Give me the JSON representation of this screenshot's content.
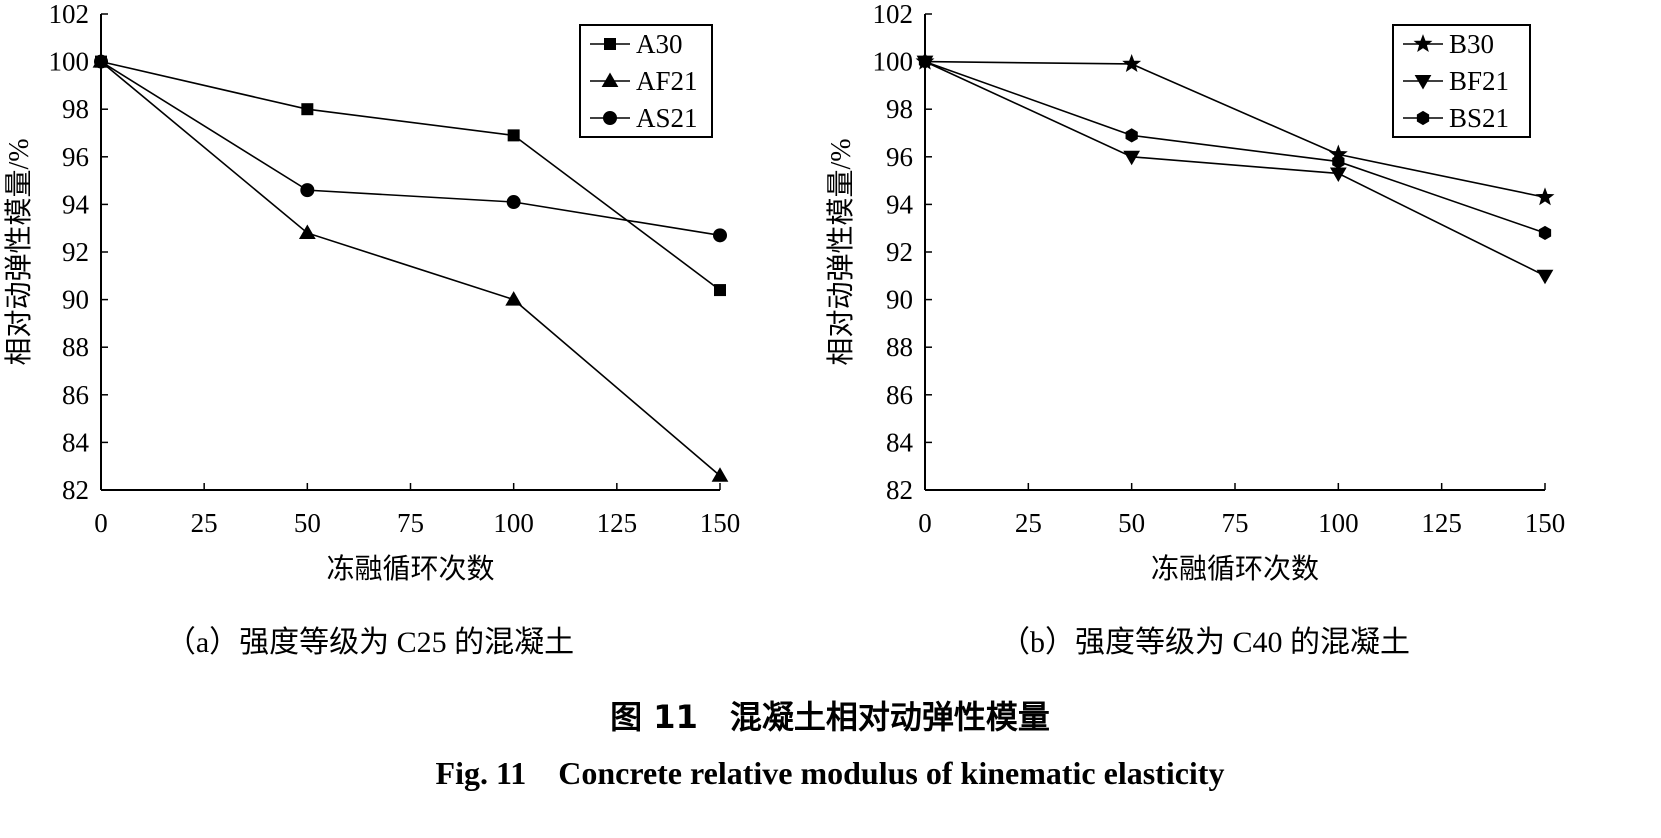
{
  "figure": {
    "title_cn": "图 11　混凝土相对动弹性模量",
    "title_en": "Fig. 11　Concrete relative modulus of kinematic elasticity"
  },
  "chart_data": [
    {
      "type": "line",
      "caption": "（a）强度等级为 C25 的混凝土",
      "xlabel": "冻融循环次数",
      "ylabel": "相对动弹性模量/%",
      "xlim": [
        0,
        150
      ],
      "ylim": [
        82,
        102
      ],
      "xticks": [
        0,
        25,
        50,
        75,
        100,
        125,
        150
      ],
      "yticks": [
        82,
        84,
        86,
        88,
        90,
        92,
        94,
        96,
        98,
        100,
        102
      ],
      "x": [
        0,
        50,
        100,
        150
      ],
      "grid": false,
      "legend_position": "top-right",
      "series": [
        {
          "name": "A30",
          "marker": "square",
          "values": [
            100,
            98.0,
            96.9,
            90.4
          ]
        },
        {
          "name": "AF21",
          "marker": "triangle-up",
          "values": [
            100,
            92.8,
            90.0,
            82.6
          ]
        },
        {
          "name": "AS21",
          "marker": "circle",
          "values": [
            100,
            94.6,
            94.1,
            92.7
          ]
        }
      ]
    },
    {
      "type": "line",
      "caption": "（b）强度等级为 C40 的混凝土",
      "xlabel": "冻融循环次数",
      "ylabel": "相对动弹性模量/%",
      "xlim": [
        0,
        150
      ],
      "ylim": [
        82,
        102
      ],
      "xticks": [
        0,
        25,
        50,
        75,
        100,
        125,
        150
      ],
      "yticks": [
        82,
        84,
        86,
        88,
        90,
        92,
        94,
        96,
        98,
        100,
        102
      ],
      "x": [
        0,
        50,
        100,
        150
      ],
      "grid": false,
      "legend_position": "top-right",
      "series": [
        {
          "name": "B30",
          "marker": "star",
          "values": [
            100,
            99.9,
            96.1,
            94.3
          ]
        },
        {
          "name": "BF21",
          "marker": "triangle-down",
          "values": [
            100,
            96.0,
            95.3,
            91.0
          ]
        },
        {
          "name": "BS21",
          "marker": "hexagon",
          "values": [
            100,
            96.9,
            95.8,
            92.8
          ]
        }
      ]
    }
  ]
}
